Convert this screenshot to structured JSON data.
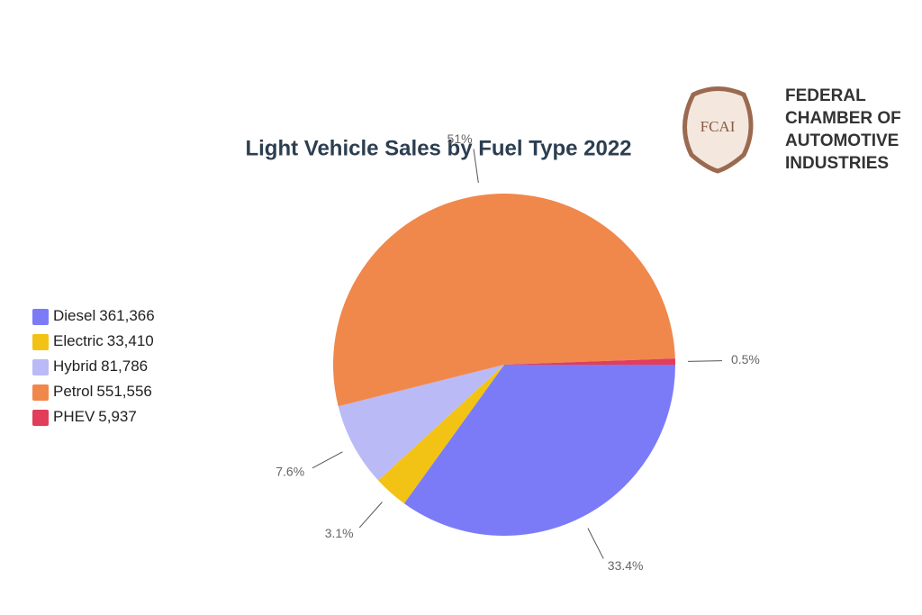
{
  "chart_data": {
    "type": "pie",
    "title": "Light Vehicle Sales by Fuel Type 2022",
    "categories": [
      "Diesel",
      "Electric",
      "Hybrid",
      "Petrol",
      "PHEV"
    ],
    "values": [
      361366,
      33410,
      81786,
      551556,
      5937
    ],
    "value_labels": [
      "361,366",
      "33,410",
      "81,786",
      "551,556",
      "5,937"
    ],
    "percentages": [
      33.4,
      3.1,
      7.6,
      51,
      0.5
    ],
    "percentage_labels": [
      "33.4%",
      "3.1%",
      "7.6%",
      "51%",
      "0.5%"
    ],
    "colors": [
      "#7b7bf8",
      "#f2c314",
      "#babaf6",
      "#f0884b",
      "#e23d5b"
    ],
    "legend": "left"
  },
  "logo": {
    "initials": "FCAI",
    "lines": [
      "FEDERAL",
      "CHAMBER OF",
      "AUTOMOTIVE",
      "INDUSTRIES"
    ]
  }
}
